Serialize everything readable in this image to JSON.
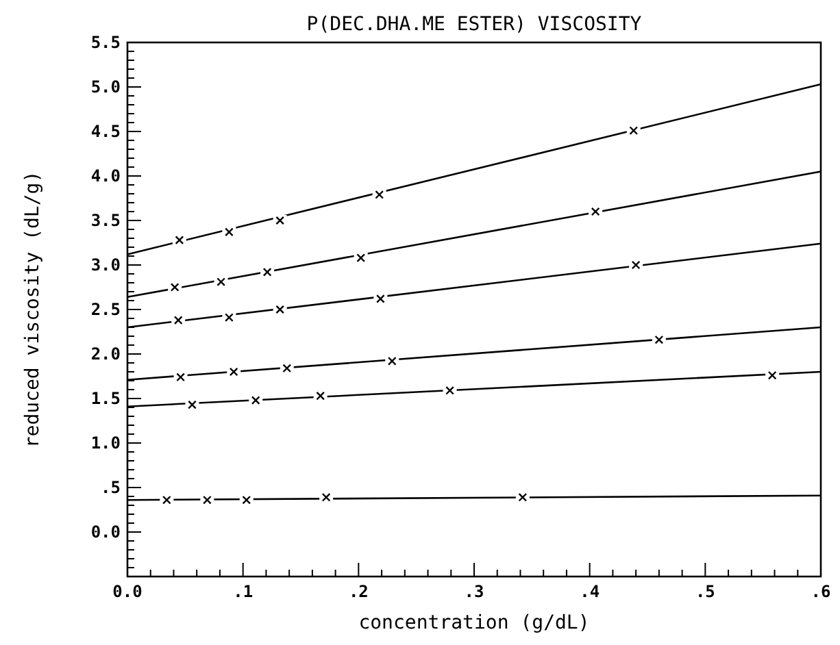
{
  "chart_data": {
    "type": "line",
    "title": "P(DEC.DHA.ME ESTER) VISCOSITY",
    "xlabel": "concentration (g/dL)",
    "ylabel": "reduced viscosity (dL/g)",
    "xlim": [
      0,
      0.6
    ],
    "ylim": [
      -0.5,
      5.5
    ],
    "grid": false,
    "xticks": [
      {
        "value": 0,
        "label": "0.0"
      },
      {
        "value": 0.02,
        "label": null
      },
      {
        "value": 0.04,
        "label": null
      },
      {
        "value": 0.06,
        "label": null
      },
      {
        "value": 0.08,
        "label": null
      },
      {
        "value": 0.1,
        "label": ".1"
      },
      {
        "value": 0.12,
        "label": null
      },
      {
        "value": 0.14,
        "label": null
      },
      {
        "value": 0.16,
        "label": null
      },
      {
        "value": 0.18,
        "label": null
      },
      {
        "value": 0.2,
        "label": ".2"
      },
      {
        "value": 0.22,
        "label": null
      },
      {
        "value": 0.24,
        "label": null
      },
      {
        "value": 0.26,
        "label": null
      },
      {
        "value": 0.28,
        "label": null
      },
      {
        "value": 0.3,
        "label": ".3"
      },
      {
        "value": 0.32,
        "label": null
      },
      {
        "value": 0.34,
        "label": null
      },
      {
        "value": 0.36,
        "label": null
      },
      {
        "value": 0.38,
        "label": null
      },
      {
        "value": 0.4,
        "label": ".4"
      },
      {
        "value": 0.42,
        "label": null
      },
      {
        "value": 0.44,
        "label": null
      },
      {
        "value": 0.46,
        "label": null
      },
      {
        "value": 0.48,
        "label": null
      },
      {
        "value": 0.5,
        "label": ".5"
      },
      {
        "value": 0.52,
        "label": null
      },
      {
        "value": 0.54,
        "label": null
      },
      {
        "value": 0.56,
        "label": null
      },
      {
        "value": 0.58,
        "label": null
      },
      {
        "value": 0.6,
        "label": ".6"
      }
    ],
    "yticks": [
      {
        "value": -0.4,
        "label": null
      },
      {
        "value": -0.3,
        "label": null
      },
      {
        "value": -0.2,
        "label": null
      },
      {
        "value": -0.1,
        "label": null
      },
      {
        "value": 0,
        "label": "0.0"
      },
      {
        "value": 0.1,
        "label": null
      },
      {
        "value": 0.2,
        "label": null
      },
      {
        "value": 0.3,
        "label": null
      },
      {
        "value": 0.4,
        "label": null
      },
      {
        "value": 0.5,
        "label": ".5"
      },
      {
        "value": 0.6,
        "label": null
      },
      {
        "value": 0.7,
        "label": null
      },
      {
        "value": 0.8,
        "label": null
      },
      {
        "value": 0.9,
        "label": null
      },
      {
        "value": 1,
        "label": "1.0"
      },
      {
        "value": 1.1,
        "label": null
      },
      {
        "value": 1.2,
        "label": null
      },
      {
        "value": 1.3,
        "label": null
      },
      {
        "value": 1.4,
        "label": null
      },
      {
        "value": 1.5,
        "label": "1.5"
      },
      {
        "value": 1.6,
        "label": null
      },
      {
        "value": 1.7,
        "label": null
      },
      {
        "value": 1.8,
        "label": null
      },
      {
        "value": 1.9,
        "label": null
      },
      {
        "value": 2,
        "label": "2.0"
      },
      {
        "value": 2.1,
        "label": null
      },
      {
        "value": 2.2,
        "label": null
      },
      {
        "value": 2.3,
        "label": null
      },
      {
        "value": 2.4,
        "label": null
      },
      {
        "value": 2.5,
        "label": "2.5"
      },
      {
        "value": 2.6,
        "label": null
      },
      {
        "value": 2.7,
        "label": null
      },
      {
        "value": 2.8,
        "label": null
      },
      {
        "value": 2.9,
        "label": null
      },
      {
        "value": 3,
        "label": "3.0"
      },
      {
        "value": 3.1,
        "label": null
      },
      {
        "value": 3.2,
        "label": null
      },
      {
        "value": 3.3,
        "label": null
      },
      {
        "value": 3.4,
        "label": null
      },
      {
        "value": 3.5,
        "label": "3.5"
      },
      {
        "value": 3.6,
        "label": null
      },
      {
        "value": 3.7,
        "label": null
      },
      {
        "value": 3.8,
        "label": null
      },
      {
        "value": 3.9,
        "label": null
      },
      {
        "value": 4,
        "label": "4.0"
      },
      {
        "value": 4.1,
        "label": null
      },
      {
        "value": 4.2,
        "label": null
      },
      {
        "value": 4.3,
        "label": null
      },
      {
        "value": 4.4,
        "label": null
      },
      {
        "value": 4.5,
        "label": "4.5"
      },
      {
        "value": 4.6,
        "label": null
      },
      {
        "value": 4.7,
        "label": null
      },
      {
        "value": 4.8,
        "label": null
      },
      {
        "value": 4.9,
        "label": null
      },
      {
        "value": 5,
        "label": "5.0"
      },
      {
        "value": 5.1,
        "label": null
      },
      {
        "value": 5.2,
        "label": null
      },
      {
        "value": 5.3,
        "label": null
      },
      {
        "value": 5.4,
        "label": null
      },
      {
        "value": 5.5,
        "label": "5.5"
      }
    ],
    "series": [
      {
        "color": "#000000",
        "marker": "none",
        "x": [
          0,
          0.6
        ],
        "values": [
          3.12,
          5.03
        ]
      },
      {
        "type": "scatter",
        "color": "#000000",
        "marker": "cross",
        "x": [
          0.045,
          0.088,
          0.132,
          0.218,
          0.438
        ],
        "values": [
          3.28,
          3.37,
          3.5,
          3.79,
          4.51
        ]
      },
      {
        "color": "#000000",
        "marker": "none",
        "x": [
          0,
          0.6
        ],
        "values": [
          2.64,
          4.05
        ]
      },
      {
        "type": "scatter",
        "color": "#000000",
        "marker": "cross",
        "x": [
          0.041,
          0.081,
          0.121,
          0.202,
          0.405
        ],
        "values": [
          2.75,
          2.81,
          2.92,
          3.08,
          3.6
        ]
      },
      {
        "color": "#000000",
        "marker": "none",
        "x": [
          0,
          0.6
        ],
        "values": [
          2.3,
          3.24
        ]
      },
      {
        "type": "scatter",
        "color": "#000000",
        "marker": "cross",
        "x": [
          0.044,
          0.088,
          0.132,
          0.219,
          0.44
        ],
        "values": [
          2.38,
          2.41,
          2.5,
          2.62,
          3.0
        ]
      },
      {
        "color": "#000000",
        "marker": "none",
        "x": [
          0,
          0.6
        ],
        "values": [
          1.71,
          2.3
        ]
      },
      {
        "type": "scatter",
        "color": "#000000",
        "marker": "cross",
        "x": [
          0.046,
          0.092,
          0.138,
          0.229,
          0.46
        ],
        "values": [
          1.74,
          1.8,
          1.84,
          1.92,
          2.16
        ]
      },
      {
        "color": "#000000",
        "marker": "none",
        "x": [
          0,
          0.6
        ],
        "values": [
          1.41,
          1.8
        ]
      },
      {
        "type": "scatter",
        "color": "#000000",
        "marker": "cross",
        "x": [
          0.056,
          0.111,
          0.167,
          0.279,
          0.558
        ],
        "values": [
          1.43,
          1.48,
          1.53,
          1.59,
          1.76
        ]
      },
      {
        "color": "#000000",
        "marker": "none",
        "x": [
          0,
          0.6
        ],
        "values": [
          0.36,
          0.41
        ]
      },
      {
        "type": "scatter",
        "color": "#000000",
        "marker": "cross",
        "x": [
          0.034,
          0.069,
          0.103,
          0.172,
          0.342
        ],
        "values": [
          0.36,
          0.36,
          0.36,
          0.39,
          0.39
        ]
      }
    ]
  }
}
